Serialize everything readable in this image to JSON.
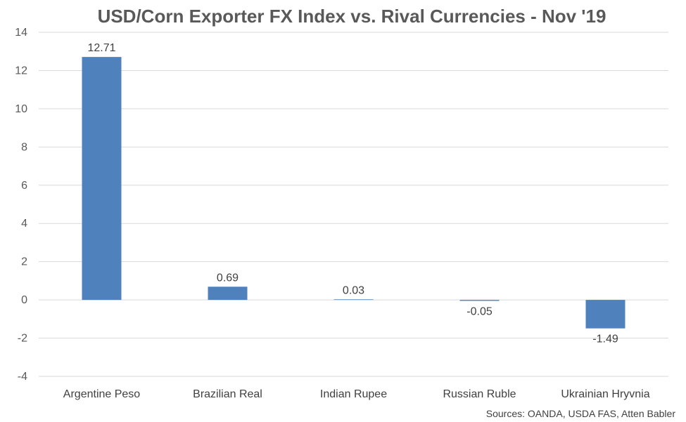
{
  "chart_data": {
    "type": "bar",
    "title": "USD/Corn Exporter FX Index vs. Rival Currencies - Nov '19",
    "categories": [
      "Argentine Peso",
      "Brazilian Real",
      "Indian Rupee",
      "Russian Ruble",
      "Ukrainian Hryvnia"
    ],
    "values": [
      12.71,
      0.69,
      0.03,
      -0.05,
      -1.49
    ],
    "data_labels": [
      "12.71",
      "0.69",
      "0.03",
      "-0.05",
      "-1.49"
    ],
    "ylim": [
      -4,
      14
    ],
    "yticks": [
      -4,
      -2,
      0,
      2,
      4,
      6,
      8,
      10,
      12,
      14
    ],
    "grid": true,
    "bar_color": "#4f81bd",
    "source": "Sources: OANDA, USDA FAS, Atten Babler"
  }
}
